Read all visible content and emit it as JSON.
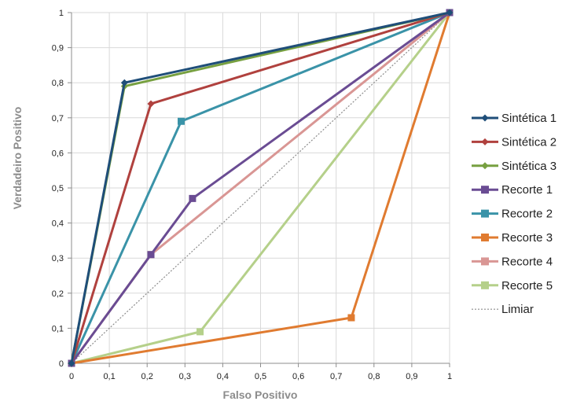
{
  "chart_data": {
    "type": "line",
    "xlabel": "Falso Positivo",
    "ylabel": "Verdadeiro Positivo",
    "xlim": [
      0,
      1
    ],
    "ylim": [
      0,
      1
    ],
    "xticks": [
      "0",
      "0,1",
      "0,2",
      "0,3",
      "0,4",
      "0,5",
      "0,6",
      "0,7",
      "0,8",
      "0,9",
      "1"
    ],
    "yticks": [
      "0",
      "0,1",
      "0,2",
      "0,3",
      "0,4",
      "0,5",
      "0,6",
      "0,7",
      "0,8",
      "0,9",
      "1"
    ],
    "grid": true,
    "legend_position": "right",
    "series": [
      {
        "name": "Sintética 1",
        "color": "#1f4e79",
        "marker": "diamond",
        "dash": false,
        "x": [
          0,
          0.14,
          1
        ],
        "y": [
          0,
          0.8,
          1
        ]
      },
      {
        "name": "Sintética 2",
        "color": "#b0413e",
        "marker": "diamond",
        "dash": false,
        "x": [
          0,
          0.21,
          1
        ],
        "y": [
          0,
          0.74,
          1
        ]
      },
      {
        "name": "Sintética 3",
        "color": "#77a040",
        "marker": "diamond",
        "dash": false,
        "x": [
          0,
          0.14,
          1
        ],
        "y": [
          0,
          0.79,
          1
        ]
      },
      {
        "name": "Recorte 1",
        "color": "#6a4c93",
        "marker": "square",
        "dash": false,
        "x": [
          0,
          0.21,
          0.32,
          1
        ],
        "y": [
          0,
          0.31,
          0.47,
          1
        ]
      },
      {
        "name": "Recorte 2",
        "color": "#3a93a8",
        "marker": "square",
        "dash": false,
        "x": [
          0,
          0.29,
          1
        ],
        "y": [
          0,
          0.69,
          1
        ]
      },
      {
        "name": "Recorte 3",
        "color": "#e07b30",
        "marker": "square",
        "dash": false,
        "x": [
          0,
          0.74,
          1
        ],
        "y": [
          0,
          0.13,
          1
        ]
      },
      {
        "name": "Recorte 4",
        "color": "#d99694",
        "marker": "square",
        "dash": false,
        "x": [
          0,
          0.21,
          1
        ],
        "y": [
          0,
          0.31,
          1
        ]
      },
      {
        "name": "Recorte 5",
        "color": "#b5d08a",
        "marker": "square",
        "dash": false,
        "x": [
          0,
          0.34,
          1
        ],
        "y": [
          0,
          0.09,
          1
        ]
      },
      {
        "name": "Limiar",
        "color": "#8c8c8c",
        "marker": "none",
        "dash": true,
        "x": [
          0,
          1
        ],
        "y": [
          0,
          1
        ]
      }
    ]
  }
}
